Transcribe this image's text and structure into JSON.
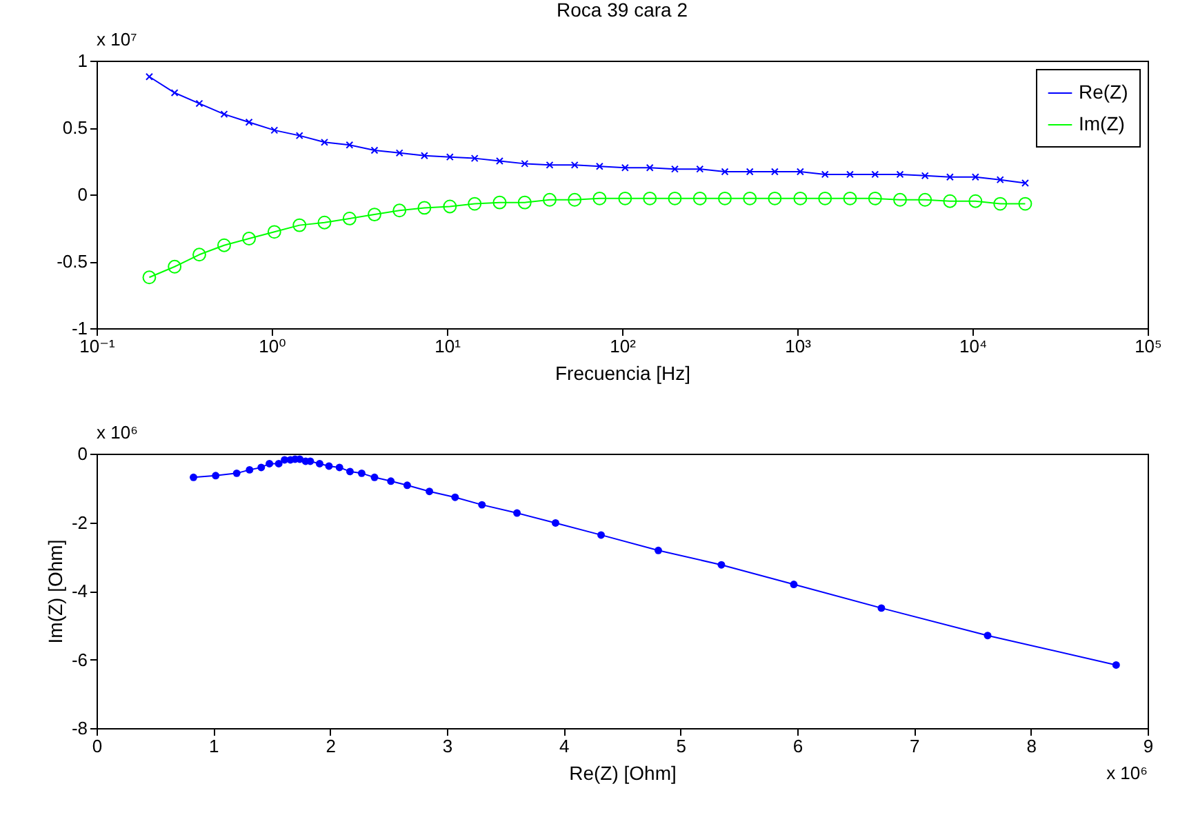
{
  "chart_data": [
    {
      "type": "line",
      "title": "Roca 39 cara 2",
      "xlabel": "Frecuencia [Hz]",
      "log": "x",
      "legend": "top right",
      "grid": false,
      "annotations": [
        "x 10⁷"
      ],
      "x": [
        0.2,
        0.279,
        0.386,
        0.535,
        0.742,
        1.035,
        1.44,
        2,
        2.78,
        3.86,
        5.36,
        7.44,
        10.4,
        14.4,
        20,
        27.8,
        38.6,
        53.6,
        74.4,
        104,
        144,
        200,
        278,
        386,
        536,
        744,
        1040,
        1440,
        2000,
        2780,
        3860,
        5360,
        7440,
        10400,
        14400,
        20000
      ],
      "xlim": [
        0.1,
        100000
      ],
      "xticks": [
        {
          "value": 0.1,
          "label": "10⁻¹"
        },
        {
          "value": 1,
          "label": "10⁰"
        },
        {
          "value": 10,
          "label": "10¹"
        },
        {
          "value": 100,
          "label": "10²"
        },
        {
          "value": 1000,
          "label": "10³"
        },
        {
          "value": 10000,
          "label": "10⁴"
        },
        {
          "value": 100000,
          "label": "10⁵"
        }
      ],
      "ylim": [
        -1,
        1
      ],
      "yticks": [
        -1,
        -0.5,
        0,
        0.5,
        1
      ],
      "series": [
        {
          "name": "Re(Z)",
          "color": "#0000ff",
          "marker": "cross",
          "values": [
            0.88,
            0.76,
            0.68,
            0.6,
            0.54,
            0.48,
            0.44,
            0.39,
            0.37,
            0.33,
            0.31,
            0.29,
            0.28,
            0.27,
            0.25,
            0.23,
            0.22,
            0.22,
            0.21,
            0.2,
            0.2,
            0.19,
            0.19,
            0.17,
            0.17,
            0.17,
            0.17,
            0.15,
            0.15,
            0.15,
            0.15,
            0.14,
            0.13,
            0.13,
            0.11,
            0.085
          ]
        },
        {
          "name": "Im(Z)",
          "color": "#00ff00",
          "marker": "circle",
          "values": [
            -0.62,
            -0.54,
            -0.45,
            -0.38,
            -0.33,
            -0.28,
            -0.23,
            -0.21,
            -0.18,
            -0.15,
            -0.12,
            -0.1,
            -0.09,
            -0.07,
            -0.06,
            -0.06,
            -0.04,
            -0.04,
            -0.03,
            -0.03,
            -0.03,
            -0.03,
            -0.03,
            -0.03,
            -0.03,
            -0.03,
            -0.03,
            -0.03,
            -0.03,
            -0.03,
            -0.04,
            -0.04,
            -0.05,
            -0.05,
            -0.07,
            -0.07
          ]
        }
      ]
    },
    {
      "type": "line",
      "xlabel": "Re(Z) [Ohm]",
      "ylabel": "Im(Z) [Ohm]",
      "grid": false,
      "marker": "circle",
      "annotations": [
        "x 10⁶",
        "x 10⁶"
      ],
      "xlim": [
        0,
        9
      ],
      "xticks": [
        0,
        1,
        2,
        3,
        4,
        5,
        6,
        7,
        8,
        9
      ],
      "ylim": [
        -8,
        0
      ],
      "yticks": [
        -8,
        -6,
        -4,
        -2,
        0
      ],
      "series": [
        {
          "color": "#0000ff",
          "x": [
            0.83,
            1.02,
            1.2,
            1.31,
            1.41,
            1.48,
            1.56,
            1.61,
            1.66,
            1.7,
            1.74,
            1.79,
            1.83,
            1.91,
            1.99,
            2.08,
            2.17,
            2.27,
            2.38,
            2.52,
            2.66,
            2.85,
            3.07,
            3.3,
            3.6,
            3.93,
            4.32,
            4.81,
            5.35,
            5.97,
            6.72,
            7.63,
            8.73
          ],
          "values": [
            -0.69,
            -0.64,
            -0.57,
            -0.47,
            -0.4,
            -0.29,
            -0.29,
            -0.18,
            -0.18,
            -0.16,
            -0.16,
            -0.22,
            -0.22,
            -0.29,
            -0.36,
            -0.4,
            -0.52,
            -0.57,
            -0.69,
            -0.8,
            -0.92,
            -1.1,
            -1.27,
            -1.49,
            -1.73,
            -2.02,
            -2.37,
            -2.82,
            -3.24,
            -3.81,
            -4.5,
            -5.3,
            -6.16
          ]
        }
      ]
    }
  ]
}
